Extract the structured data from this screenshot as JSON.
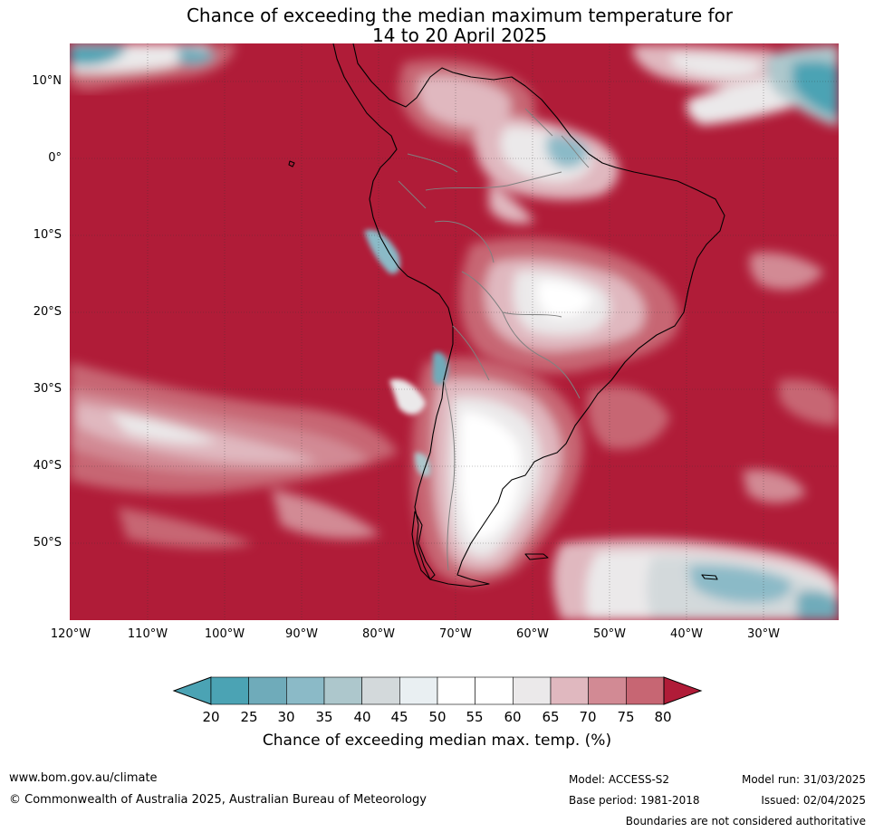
{
  "title_line1": "Chance of exceeding the median maximum temperature for",
  "title_line2": "14 to 20 April 2025",
  "map": {
    "lat_labels": [
      "10°N",
      "0°",
      "10°S",
      "20°S",
      "30°S",
      "40°S",
      "50°S"
    ],
    "lon_labels": [
      "120°W",
      "110°W",
      "100°W",
      "90°W",
      "80°W",
      "70°W",
      "60°W",
      "50°W",
      "40°W",
      "30°W"
    ],
    "colors": {
      "ocean_high": "#b01c38",
      "c20": "#4ba3b4",
      "c25": "#6fabba",
      "c30": "#8bbac7",
      "c35": "#adc7cc",
      "c40": "#d3d9db",
      "c45": "#e9eff2",
      "c50": "#ffffff",
      "c55": "#ffffff",
      "c60": "#ebe9ea",
      "c65": "#e0b8bf",
      "c70": "#d28a94",
      "c75": "#c76673",
      "c80": "#bf4456",
      "over": "#b01c38"
    }
  },
  "colorbar": {
    "ticks": [
      "20",
      "25",
      "30",
      "35",
      "40",
      "45",
      "50",
      "55",
      "60",
      "65",
      "70",
      "75",
      "80"
    ],
    "label": "Chance of exceeding median max. temp. (%)"
  },
  "footer": {
    "url": "www.bom.gov.au/climate",
    "copyright": "© Commonwealth of Australia 2025, Australian Bureau of Meteorology",
    "model": "Model: ACCESS-S2",
    "base_period": "Base period: 1981-2018",
    "model_run": "Model run: 31/03/2025",
    "issued": "Issued: 02/04/2025",
    "disclaimer": "Boundaries are not considered authoritative"
  }
}
